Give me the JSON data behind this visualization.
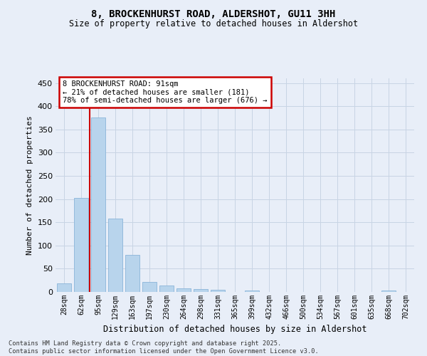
{
  "title_line1": "8, BROCKENHURST ROAD, ALDERSHOT, GU11 3HH",
  "title_line2": "Size of property relative to detached houses in Aldershot",
  "xlabel": "Distribution of detached houses by size in Aldershot",
  "ylabel": "Number of detached properties",
  "categories": [
    "28sqm",
    "62sqm",
    "95sqm",
    "129sqm",
    "163sqm",
    "197sqm",
    "230sqm",
    "264sqm",
    "298sqm",
    "331sqm",
    "365sqm",
    "399sqm",
    "432sqm",
    "466sqm",
    "500sqm",
    "534sqm",
    "567sqm",
    "601sqm",
    "635sqm",
    "668sqm",
    "702sqm"
  ],
  "values": [
    18,
    202,
    375,
    158,
    79,
    21,
    14,
    8,
    6,
    4,
    0,
    3,
    0,
    0,
    0,
    0,
    0,
    0,
    0,
    3,
    0
  ],
  "bar_color": "#b8d4ec",
  "bar_edge_color": "#8ab4d8",
  "grid_color": "#c8d4e4",
  "background_color": "#e8eef8",
  "red_line_x": 1.5,
  "annotation_text": "8 BROCKENHURST ROAD: 91sqm\n← 21% of detached houses are smaller (181)\n78% of semi-detached houses are larger (676) →",
  "annotation_box_facecolor": "#ffffff",
  "annotation_border_color": "#cc0000",
  "footer_line1": "Contains HM Land Registry data © Crown copyright and database right 2025.",
  "footer_line2": "Contains public sector information licensed under the Open Government Licence v3.0.",
  "ylim": [
    0,
    460
  ],
  "yticks": [
    0,
    50,
    100,
    150,
    200,
    250,
    300,
    350,
    400,
    450
  ]
}
